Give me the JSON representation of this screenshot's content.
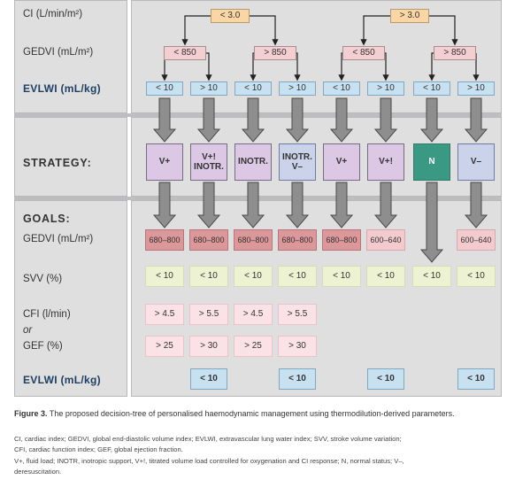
{
  "labels": {
    "ci": "CI (L/min/m²)",
    "gedvi_top": "GEDVI (mL/m²)",
    "evlwi_top": "EVLWI (mL/kg)",
    "strategy": "STRATEGY:",
    "goals": "GOALS:",
    "gedvi_goal": "GEDVI (mL/m²)",
    "svv": "SVV (%)",
    "cfi": "CFI (l/min)",
    "or": "or",
    "gef": "GEF (%)",
    "evlwi_bottom": "EVLWI (mL/kg)"
  },
  "ci_thresholds": [
    "< 3.0",
    "> 3.0"
  ],
  "gedvi_thresholds": [
    "< 850",
    "> 850",
    "< 850",
    "> 850"
  ],
  "evlwi_thresholds": [
    "< 10",
    "> 10",
    "< 10",
    "> 10",
    "< 10",
    "> 10",
    "< 10",
    "> 10"
  ],
  "strategies": [
    {
      "text": "V+",
      "kind": "purple"
    },
    {
      "text": "V+!\nINOTR.",
      "kind": "purple"
    },
    {
      "text": "INOTR.",
      "kind": "purple"
    },
    {
      "text": "INOTR.\nV–",
      "kind": "blue"
    },
    {
      "text": "V+",
      "kind": "purple"
    },
    {
      "text": "V+!",
      "kind": "purple"
    },
    {
      "text": "N",
      "kind": "green"
    },
    {
      "text": "V–",
      "kind": "blue"
    }
  ],
  "goals": {
    "gedvi": [
      "680–800",
      "680–800",
      "680–800",
      "680–800",
      "680–800",
      "600–640",
      "",
      "600–640"
    ],
    "svv": [
      "< 10",
      "< 10",
      "< 10",
      "< 10",
      "< 10",
      "< 10",
      "< 10",
      "< 10"
    ],
    "cfi": [
      "> 4.5",
      "> 5.5",
      "> 4.5",
      "> 5.5",
      "",
      "",
      "",
      ""
    ],
    "gef": [
      "> 25",
      "> 30",
      "> 25",
      "> 30",
      "",
      "",
      "",
      ""
    ],
    "evlwi": [
      "",
      "< 10",
      "",
      "< 10",
      "",
      "< 10",
      "",
      "< 10"
    ]
  },
  "caption": {
    "label": "Figure 3.",
    "text": " The proposed decision-tree of personalised haemodynamic management using thermodilution-derived parameters."
  },
  "footnotes": [
    "CI, cardiac index; GEDVI, global end-diastolic volume index; EVLWI, extravascular lung water index; SVV, stroke volume variation;",
    "CFI, cardiac function index; GEF, global ejection fraction.",
    "V+, fluid load; INOTR, inotropic support, V+!, titrated volume load controlled for oxygenation and CI response; N, normal status; V–,",
    "deresuscitation."
  ],
  "colors": {
    "panel": "#dfdfe0",
    "threshold_ci": "#fad6a5",
    "threshold_gedvi": "#f4cfd2",
    "threshold_evlwi": "#c7e1f1",
    "strategy_purple": "#dcc7e5",
    "strategy_blue": "#cad3ea",
    "strategy_green": "#3a9983",
    "goal_gedvi_dark": "#dc979a",
    "goal_gedvi_light": "#f3cacd",
    "goal_svv": "#edf2d3",
    "goal_cfi_gef": "#fbe2e6",
    "label_navy": "#1f3f63"
  }
}
